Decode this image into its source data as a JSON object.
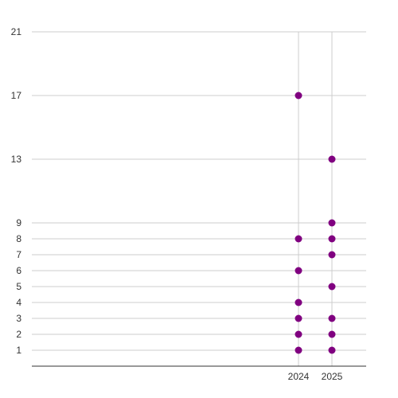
{
  "chart_data": {
    "type": "scatter",
    "title": "",
    "xlabel": "",
    "ylabel": "",
    "x_categories": [
      "2024",
      "2025"
    ],
    "y_ticks": [
      1,
      2,
      3,
      4,
      5,
      6,
      7,
      8,
      9,
      13,
      17,
      21
    ],
    "ylim": [
      0,
      21
    ],
    "grid": true,
    "legend": "none",
    "point_color": "#800080",
    "series": [
      {
        "points": [
          {
            "x": "2024",
            "y": 1
          },
          {
            "x": "2024",
            "y": 2
          },
          {
            "x": "2024",
            "y": 3
          },
          {
            "x": "2024",
            "y": 4
          },
          {
            "x": "2024",
            "y": 6
          },
          {
            "x": "2024",
            "y": 8
          },
          {
            "x": "2024",
            "y": 17
          },
          {
            "x": "2025",
            "y": 1
          },
          {
            "x": "2025",
            "y": 2
          },
          {
            "x": "2025",
            "y": 3
          },
          {
            "x": "2025",
            "y": 5
          },
          {
            "x": "2025",
            "y": 7
          },
          {
            "x": "2025",
            "y": 8
          },
          {
            "x": "2025",
            "y": 9
          },
          {
            "x": "2025",
            "y": 13
          }
        ]
      }
    ]
  }
}
